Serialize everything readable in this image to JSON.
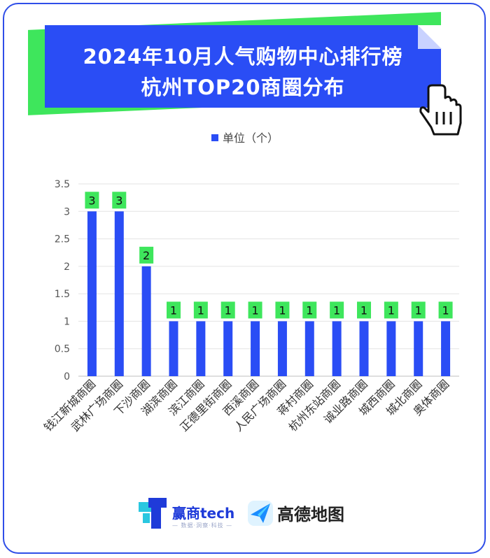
{
  "title": {
    "line1": "2024年10月人气购物中心排行榜",
    "line2": "杭州TOP20商圈分布"
  },
  "legend": {
    "label": "单位（个）"
  },
  "chart_data": {
    "type": "bar",
    "categories": [
      "钱江新城商圈",
      "武林广场商圈",
      "下沙商圈",
      "湖滨商圈",
      "滨江商圈",
      "正德里街商圈",
      "西溪商圈",
      "人民广场商圈",
      "蒋村商圈",
      "杭州东站商圈",
      "诚业路商圈",
      "城西商圈",
      "城北商圈",
      "奥体商圈"
    ],
    "series": [
      {
        "name": "单位（个）",
        "values": [
          3,
          3,
          2,
          1,
          1,
          1,
          1,
          1,
          1,
          1,
          1,
          1,
          1,
          1
        ]
      }
    ],
    "ylim": [
      0,
      3.5
    ],
    "yticks": [
      "0",
      "0.5",
      "1",
      "1.5",
      "2",
      "2.5",
      "3",
      "3.5"
    ],
    "data_labels": [
      "3",
      "3",
      "2",
      "1",
      "1",
      "1",
      "1",
      "1",
      "1",
      "1",
      "1",
      "1",
      "1",
      "1"
    ],
    "grid": true,
    "legend_position": "top",
    "colors": {
      "bar": "#2a4df5",
      "label_bg": "#3ee65c"
    }
  },
  "footer": {
    "brand1": "赢商tech",
    "brand1_sub": "— 数据·洞察·科技 —",
    "brand2": "高德地图"
  },
  "colors": {
    "accent": "#2a4df5",
    "green": "#3ee65c",
    "border": "#2f4ee8"
  },
  "icons": {
    "hand": "pointing-hand-icon",
    "brand1_logo": "winshang-logo",
    "brand2_logo": "amap-logo"
  }
}
